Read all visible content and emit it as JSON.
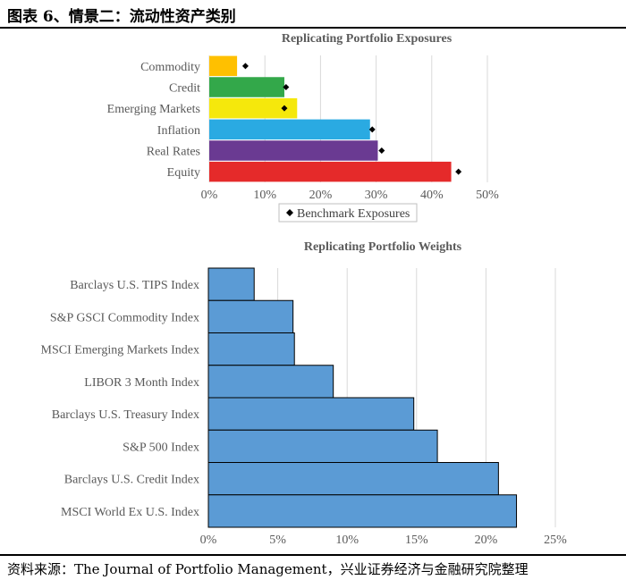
{
  "header": {
    "title": "图表 6、情景二：流动性资产类别"
  },
  "footer": {
    "source": "资料来源：The Journal of Portfolio Management，兴业证券经济与金融研究院整理"
  },
  "chart_data": [
    {
      "type": "bar",
      "orientation": "horizontal",
      "title": "Replicating Portfolio Exposures",
      "categories": [
        "Commodity",
        "Credit",
        "Emerging Markets",
        "Inflation",
        "Real Rates",
        "Equity"
      ],
      "series": [
        {
          "name": "",
          "values": [
            5.0,
            13.5,
            15.8,
            28.9,
            30.3,
            43.5
          ],
          "colors": [
            "#FFC000",
            "#33A84A",
            "#F5E80C",
            "#2AAAE2",
            "#6A3A92",
            "#E52A2A"
          ]
        },
        {
          "name": "Benchmark Exposures",
          "values": [
            6.5,
            13.8,
            13.5,
            29.3,
            31.0,
            44.8
          ],
          "marker": "diamond"
        }
      ],
      "xlim": [
        0,
        50
      ],
      "xticks": [
        "0%",
        "10%",
        "20%",
        "30%",
        "40%",
        "50%"
      ],
      "grid": true,
      "legend": "bottom"
    },
    {
      "type": "bar",
      "orientation": "horizontal",
      "title": "Replicating Portfolio Weights",
      "categories": [
        "Barclays U.S. TIPS Index",
        "S&P GSCI Commodity  Index",
        "MSCI Emerging Markets Index",
        "LIBOR 3 Month Index",
        "Barclays U.S. Treasury Index",
        "S&P 500 Index",
        "Barclays U.S. Credit Index",
        "MSCI World Ex U.S. Index"
      ],
      "series": [
        {
          "name": "",
          "values": [
            3.3,
            6.1,
            6.2,
            9.0,
            14.8,
            16.5,
            20.9,
            22.2
          ],
          "color": "#5B9BD5"
        }
      ],
      "xlim": [
        0,
        25
      ],
      "xticks": [
        "0%",
        "5%",
        "10%",
        "15%",
        "20%",
        "25%"
      ],
      "grid": true
    }
  ]
}
